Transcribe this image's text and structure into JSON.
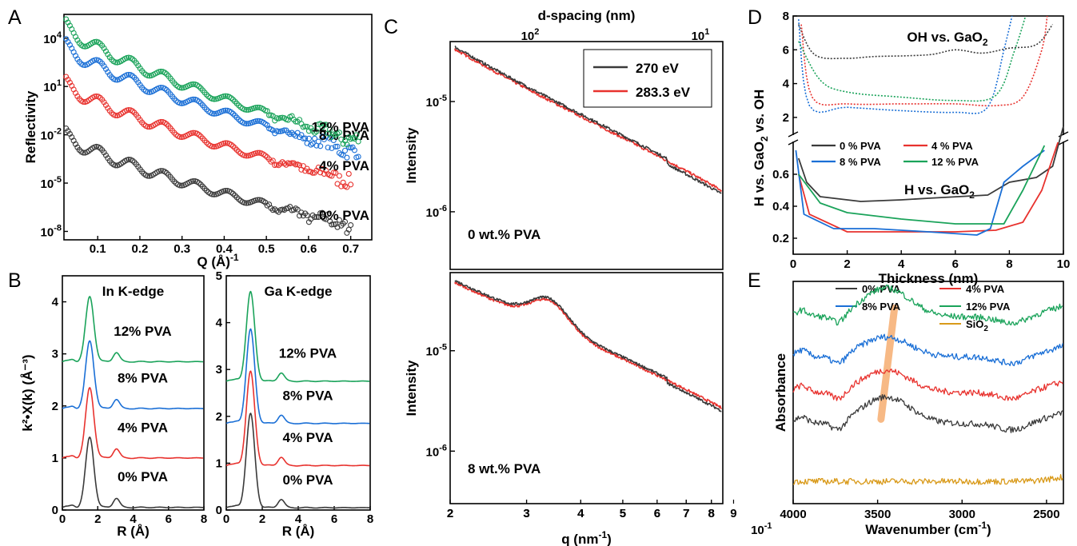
{
  "panels": [
    "A",
    "B",
    "C",
    "D",
    "E"
  ],
  "chart_data": [
    {
      "panel": "A",
      "type": "scatter",
      "xlabel": "Q (Å)",
      "xlabel_sup": "-1",
      "ylabel": "Reflectivity",
      "y_scale": "log",
      "xlim": [
        0.02,
        0.75
      ],
      "ylim": [
        3e-09,
        300000.0
      ],
      "xticks": [
        0.1,
        0.2,
        0.3,
        0.4,
        0.5,
        0.6,
        0.7
      ],
      "xtick_labels": [
        "0.1",
        "0.2",
        "0.3",
        "0.4",
        "0.5",
        "0.6",
        "0.7"
      ],
      "yticks": [
        1e-08,
        1e-05,
        0.01,
        10.0,
        10000.0
      ],
      "ytick_labels": [
        [
          "10",
          "-8"
        ],
        [
          "10",
          "-5"
        ],
        [
          "10",
          "-2"
        ],
        [
          "10",
          "1"
        ],
        [
          "10",
          "4"
        ]
      ],
      "series": [
        {
          "name": "0% PVA",
          "color": "#3a3a3a",
          "q_max": 0.7,
          "y_start": 0.025,
          "y_end": 3e-08,
          "fringe_period": 0.077
        },
        {
          "name": "4% PVA",
          "color": "#e8322e",
          "q_max": 0.7,
          "y_start": 40,
          "y_end": 2e-05,
          "fringe_period": 0.077
        },
        {
          "name": "8% PVA",
          "color": "#1a6fd6",
          "q_max": 0.72,
          "y_start": 9000,
          "y_end": 0.001,
          "fringe_period": 0.077
        },
        {
          "name": "12% PVA",
          "color": "#1aa35a",
          "q_max": 0.72,
          "y_start": 150000,
          "y_end": 0.005,
          "fringe_period": 0.077
        }
      ]
    },
    {
      "panel": "B-left",
      "type": "line",
      "title": "In K-edge",
      "xlabel": "R (Å)",
      "ylabel": "k²•X(k) (Å⁻³)",
      "xlim": [
        0,
        8
      ],
      "ylim": [
        0,
        4.5
      ],
      "xticks": [
        0,
        2,
        4,
        6,
        8
      ],
      "yticks": [
        0,
        1,
        2,
        3,
        4
      ],
      "series": [
        {
          "name": "0% PVA",
          "color": "#3a3a3a",
          "offset": 0.0,
          "peak_r": 1.55,
          "peak_h": 1.35
        },
        {
          "name": "4% PVA",
          "color": "#e8322e",
          "offset": 0.95,
          "peak_r": 1.55,
          "peak_h": 1.35
        },
        {
          "name": "8% PVA",
          "color": "#1a6fd6",
          "offset": 1.9,
          "peak_r": 1.55,
          "peak_h": 1.3
        },
        {
          "name": "12% PVA",
          "color": "#1aa35a",
          "offset": 2.8,
          "peak_r": 1.55,
          "peak_h": 1.25
        }
      ]
    },
    {
      "panel": "B-right",
      "type": "line",
      "title": "Ga K-edge",
      "xlabel": "R (Å)",
      "xlim": [
        0,
        8
      ],
      "ylim": [
        0,
        5
      ],
      "xticks": [
        0,
        2,
        4,
        6,
        8
      ],
      "yticks": [
        0,
        1,
        2,
        3,
        4,
        5
      ],
      "series": [
        {
          "name": "0% PVA",
          "color": "#3a3a3a",
          "offset": 0.0,
          "peak_r": 1.35,
          "peak_h": 2.0
        },
        {
          "name": "4% PVA",
          "color": "#e8322e",
          "offset": 0.9,
          "peak_r": 1.35,
          "peak_h": 2.0
        },
        {
          "name": "8% PVA",
          "color": "#1a6fd6",
          "offset": 1.8,
          "peak_r": 1.35,
          "peak_h": 2.0
        },
        {
          "name": "12% PVA",
          "color": "#1aa35a",
          "offset": 2.7,
          "peak_r": 1.35,
          "peak_h": 1.9
        }
      ]
    },
    {
      "panel": "C",
      "type": "line",
      "x_scale": "log",
      "y_scale": "log",
      "xlabel": "q (nm",
      "xlabel_sup": "-1",
      "xlabel_tail": ")",
      "top_xlabel": "d-spacing (nm)",
      "ylabel": "Intensity",
      "xlim": [
        0.02,
        0.085
      ],
      "xtick_minor_labels": [
        "2",
        "3",
        "4",
        "5",
        "6",
        "7",
        "8",
        "9",
        "2",
        "3",
        "4",
        "5",
        "6",
        "7",
        "8"
      ],
      "xtick_major_label": [
        "10",
        "-1"
      ],
      "top_ticks": [
        [
          "10",
          "2"
        ],
        [
          "10",
          "1"
        ]
      ],
      "legend": [
        {
          "name": "270 eV",
          "color": "#3a3a3a"
        },
        {
          "name": "283.3 eV",
          "color": "#e8322e"
        }
      ],
      "subplots": [
        {
          "label": "0 wt.% PVA",
          "ylim": [
            3e-07,
            3.5e-05
          ],
          "yticks": [
            [
              "10",
              "-5"
            ],
            [
              "10",
              "-6"
            ]
          ]
        },
        {
          "label": "8 wt.% PVA",
          "ylim": [
            3e-07,
            6e-05
          ],
          "yticks": [
            [
              "10",
              "-5"
            ],
            [
              "10",
              "-6"
            ]
          ]
        }
      ]
    },
    {
      "panel": "D",
      "type": "line",
      "xlabel": "Thickness (nm)",
      "ylabel_parts": [
        "H vs. GaO",
        "2",
        " vs. OH"
      ],
      "xlim": [
        0,
        10
      ],
      "xticks": [
        0,
        2,
        4,
        6,
        8,
        10
      ],
      "upper": {
        "title_parts": [
          "OH vs. GaO",
          "2"
        ],
        "ylim": [
          1,
          8
        ],
        "yticks": [
          2,
          4,
          6,
          8
        ]
      },
      "lower": {
        "title_parts": [
          "H vs. GaO",
          "2"
        ],
        "ylim": [
          0.1,
          0.8
        ],
        "yticks": [
          0.2,
          0.4,
          0.6
        ]
      },
      "series": [
        {
          "name": "0 % PVA",
          "color": "#3a3a3a",
          "lower": [
            [
              0.2,
              0.7
            ],
            [
              0.5,
              0.55
            ],
            [
              1,
              0.46
            ],
            [
              2.5,
              0.43
            ],
            [
              4,
              0.44
            ],
            [
              5,
              0.45
            ],
            [
              7.2,
              0.47
            ],
            [
              8,
              0.55
            ],
            [
              9,
              0.58
            ],
            [
              9.6,
              0.65
            ],
            [
              10,
              0.9
            ]
          ],
          "upper": [
            [
              0.2,
              7.5
            ],
            [
              0.8,
              5.7
            ],
            [
              2,
              5.5
            ],
            [
              3,
              5.6
            ],
            [
              5,
              5.7
            ],
            [
              6,
              6
            ],
            [
              7,
              5.8
            ],
            [
              8,
              6.1
            ],
            [
              9,
              6.3
            ],
            [
              9.6,
              7.5
            ]
          ]
        },
        {
          "name": "4 % PVA",
          "color": "#e8322e",
          "lower": [
            [
              0.2,
              0.6
            ],
            [
              0.6,
              0.35
            ],
            [
              2,
              0.24
            ],
            [
              4,
              0.24
            ],
            [
              6,
              0.24
            ],
            [
              7.5,
              0.25
            ],
            [
              8.5,
              0.3
            ],
            [
              9.2,
              0.5
            ],
            [
              9.8,
              0.8
            ]
          ],
          "upper": [
            [
              0.3,
              7.5
            ],
            [
              0.7,
              3.2
            ],
            [
              2,
              2.8
            ],
            [
              4,
              2.8
            ],
            [
              6,
              2.8
            ],
            [
              7.5,
              2.7
            ],
            [
              8.5,
              3.2
            ],
            [
              9.2,
              6
            ],
            [
              9.4,
              8
            ]
          ]
        },
        {
          "name": "8 % PVA",
          "color": "#1a6fd6",
          "lower": [
            [
              0.1,
              0.75
            ],
            [
              0.4,
              0.35
            ],
            [
              1.5,
              0.26
            ],
            [
              3,
              0.26
            ],
            [
              5,
              0.24
            ],
            [
              6.8,
              0.22
            ],
            [
              7.3,
              0.26
            ],
            [
              7.8,
              0.55
            ],
            [
              8.5,
              0.65
            ],
            [
              9.3,
              0.75
            ]
          ],
          "upper": [
            [
              0.2,
              7.8
            ],
            [
              0.6,
              2.7
            ],
            [
              2,
              2.6
            ],
            [
              4,
              2.4
            ],
            [
              6,
              2.3
            ],
            [
              7.2,
              2.6
            ],
            [
              7.8,
              6
            ],
            [
              8.1,
              8
            ]
          ]
        },
        {
          "name": "12 % PVA",
          "color": "#1aa35a",
          "lower": [
            [
              0.2,
              0.6
            ],
            [
              1,
              0.42
            ],
            [
              2,
              0.36
            ],
            [
              4,
              0.32
            ],
            [
              6,
              0.29
            ],
            [
              7.8,
              0.29
            ],
            [
              8.5,
              0.5
            ],
            [
              9.3,
              0.78
            ]
          ],
          "upper": [
            [
              0.2,
              6.5
            ],
            [
              1,
              4.2
            ],
            [
              2,
              3.5
            ],
            [
              4,
              3.2
            ],
            [
              6,
              3.0
            ],
            [
              7.5,
              3.3
            ],
            [
              8.2,
              6
            ],
            [
              8.6,
              8
            ]
          ]
        }
      ]
    },
    {
      "panel": "E",
      "type": "line",
      "xlabel": "Wavenumber (cm",
      "xlabel_sup": "-1",
      "xlabel_tail": ")",
      "ylabel": "Absorbance",
      "xlim": [
        4000,
        2400
      ],
      "x_reversed": true,
      "xticks": [
        4000,
        3500,
        3000,
        2500
      ],
      "highlight": {
        "x_top": 3400,
        "x_bottom": 3480,
        "color": "#f08020"
      },
      "series": [
        {
          "name": "0% PVA",
          "color": "#3a3a3a",
          "offset": 0.36
        },
        {
          "name": "4% PVA",
          "color": "#e8322e",
          "offset": 0.5
        },
        {
          "name": "8% PVA",
          "color": "#1a6fd6",
          "offset": 0.66
        },
        {
          "name": "12% PVA",
          "color": "#1aa35a",
          "offset": 0.84
        },
        {
          "name": "SiO",
          "name_sub": "2",
          "color": "#d99a1a",
          "offset": 0.1
        }
      ]
    }
  ]
}
